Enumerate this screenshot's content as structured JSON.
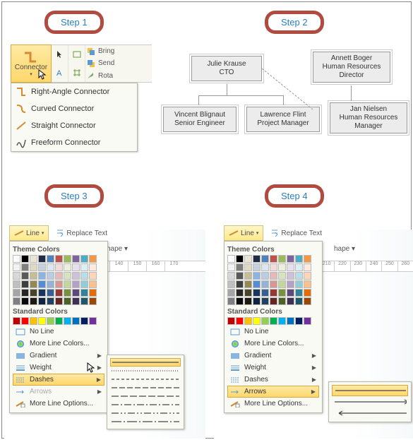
{
  "steps": {
    "s1": "Step 1",
    "s2": "Step 2",
    "s3": "Step 3",
    "s4": "Step 4"
  },
  "badge": {
    "border_color": "#b24b3f",
    "text_color": "#2a7fbf"
  },
  "ribbon": {
    "connector_label": "Connector",
    "bring": "Bring",
    "send": "Send",
    "rota": "Rota"
  },
  "connector_menu": [
    "Right-Angle Connector",
    "Curved Connector",
    "Straight Connector",
    "Freeform Connector"
  ],
  "org": {
    "nodes": [
      {
        "name": "Julie Krause",
        "title": "CTO"
      },
      {
        "name": "Annett Boger",
        "title": "Human Resources Director"
      },
      {
        "name": "Vincent Blignaut",
        "title": "Senior Engineer"
      },
      {
        "name": "Lawrence Flint",
        "title": "Project Manager"
      },
      {
        "name": "Jan Nielsen",
        "title": "Human Resources Manager"
      }
    ]
  },
  "line_tab": "Line",
  "replace_text": "Replace Text",
  "hape": "hape",
  "theme_colors_label": "Theme Colors",
  "standard_colors_label": "Standard Colors",
  "theme_colors_row0": [
    "#ffffff",
    "#000000",
    "#e8e4d8",
    "#1f2c47",
    "#4f81bd",
    "#c0504d",
    "#9bbb59",
    "#8064a2",
    "#4bacc6",
    "#f79646"
  ],
  "theme_tints": [
    [
      "#f2f2f2",
      "#7f7f7f",
      "#ddd9c3",
      "#c6d0de",
      "#dbe5f1",
      "#f2dcdb",
      "#ebf1dd",
      "#e5e0ec",
      "#dbeef3",
      "#fdeada"
    ],
    [
      "#d8d8d8",
      "#595959",
      "#c4bd97",
      "#8db3e2",
      "#b8cce4",
      "#e5b9b7",
      "#d7e3bc",
      "#ccc1d9",
      "#b7dde8",
      "#fbd5b5"
    ],
    [
      "#bfbfbf",
      "#3f3f3f",
      "#938953",
      "#548dd4",
      "#95b3d7",
      "#d99694",
      "#c3d69b",
      "#b2a2c7",
      "#92cddc",
      "#fac08f"
    ],
    [
      "#a5a5a5",
      "#262626",
      "#494429",
      "#17365d",
      "#366092",
      "#953734",
      "#76923c",
      "#5f497a",
      "#31859b",
      "#e36c09"
    ],
    [
      "#7f7f7f",
      "#0c0c0c",
      "#1d1b10",
      "#0f243e",
      "#244061",
      "#632423",
      "#4f6128",
      "#3f3151",
      "#205867",
      "#974806"
    ]
  ],
  "standard_colors": [
    "#c00000",
    "#ff0000",
    "#ffc000",
    "#ffff00",
    "#92d050",
    "#00b050",
    "#00b0f0",
    "#0070c0",
    "#002060",
    "#7030a0"
  ],
  "menu": {
    "no_line": "No Line",
    "more_colors": "More Line Colors...",
    "gradient": "Gradient",
    "weight": "Weight",
    "dashes": "Dashes",
    "arrows": "Arrows",
    "more_options": "More Line Options..."
  },
  "ruler_ticks": [
    "130",
    "140",
    "150",
    "160",
    "170",
    "210",
    "220",
    "230",
    "240",
    "250",
    "260"
  ],
  "dash_patterns": [
    "none",
    "1,2",
    "4,3",
    "8,3",
    "10,3",
    "10,3,2,3",
    "10,3,2,3,2,3",
    "14,3,2,3"
  ]
}
